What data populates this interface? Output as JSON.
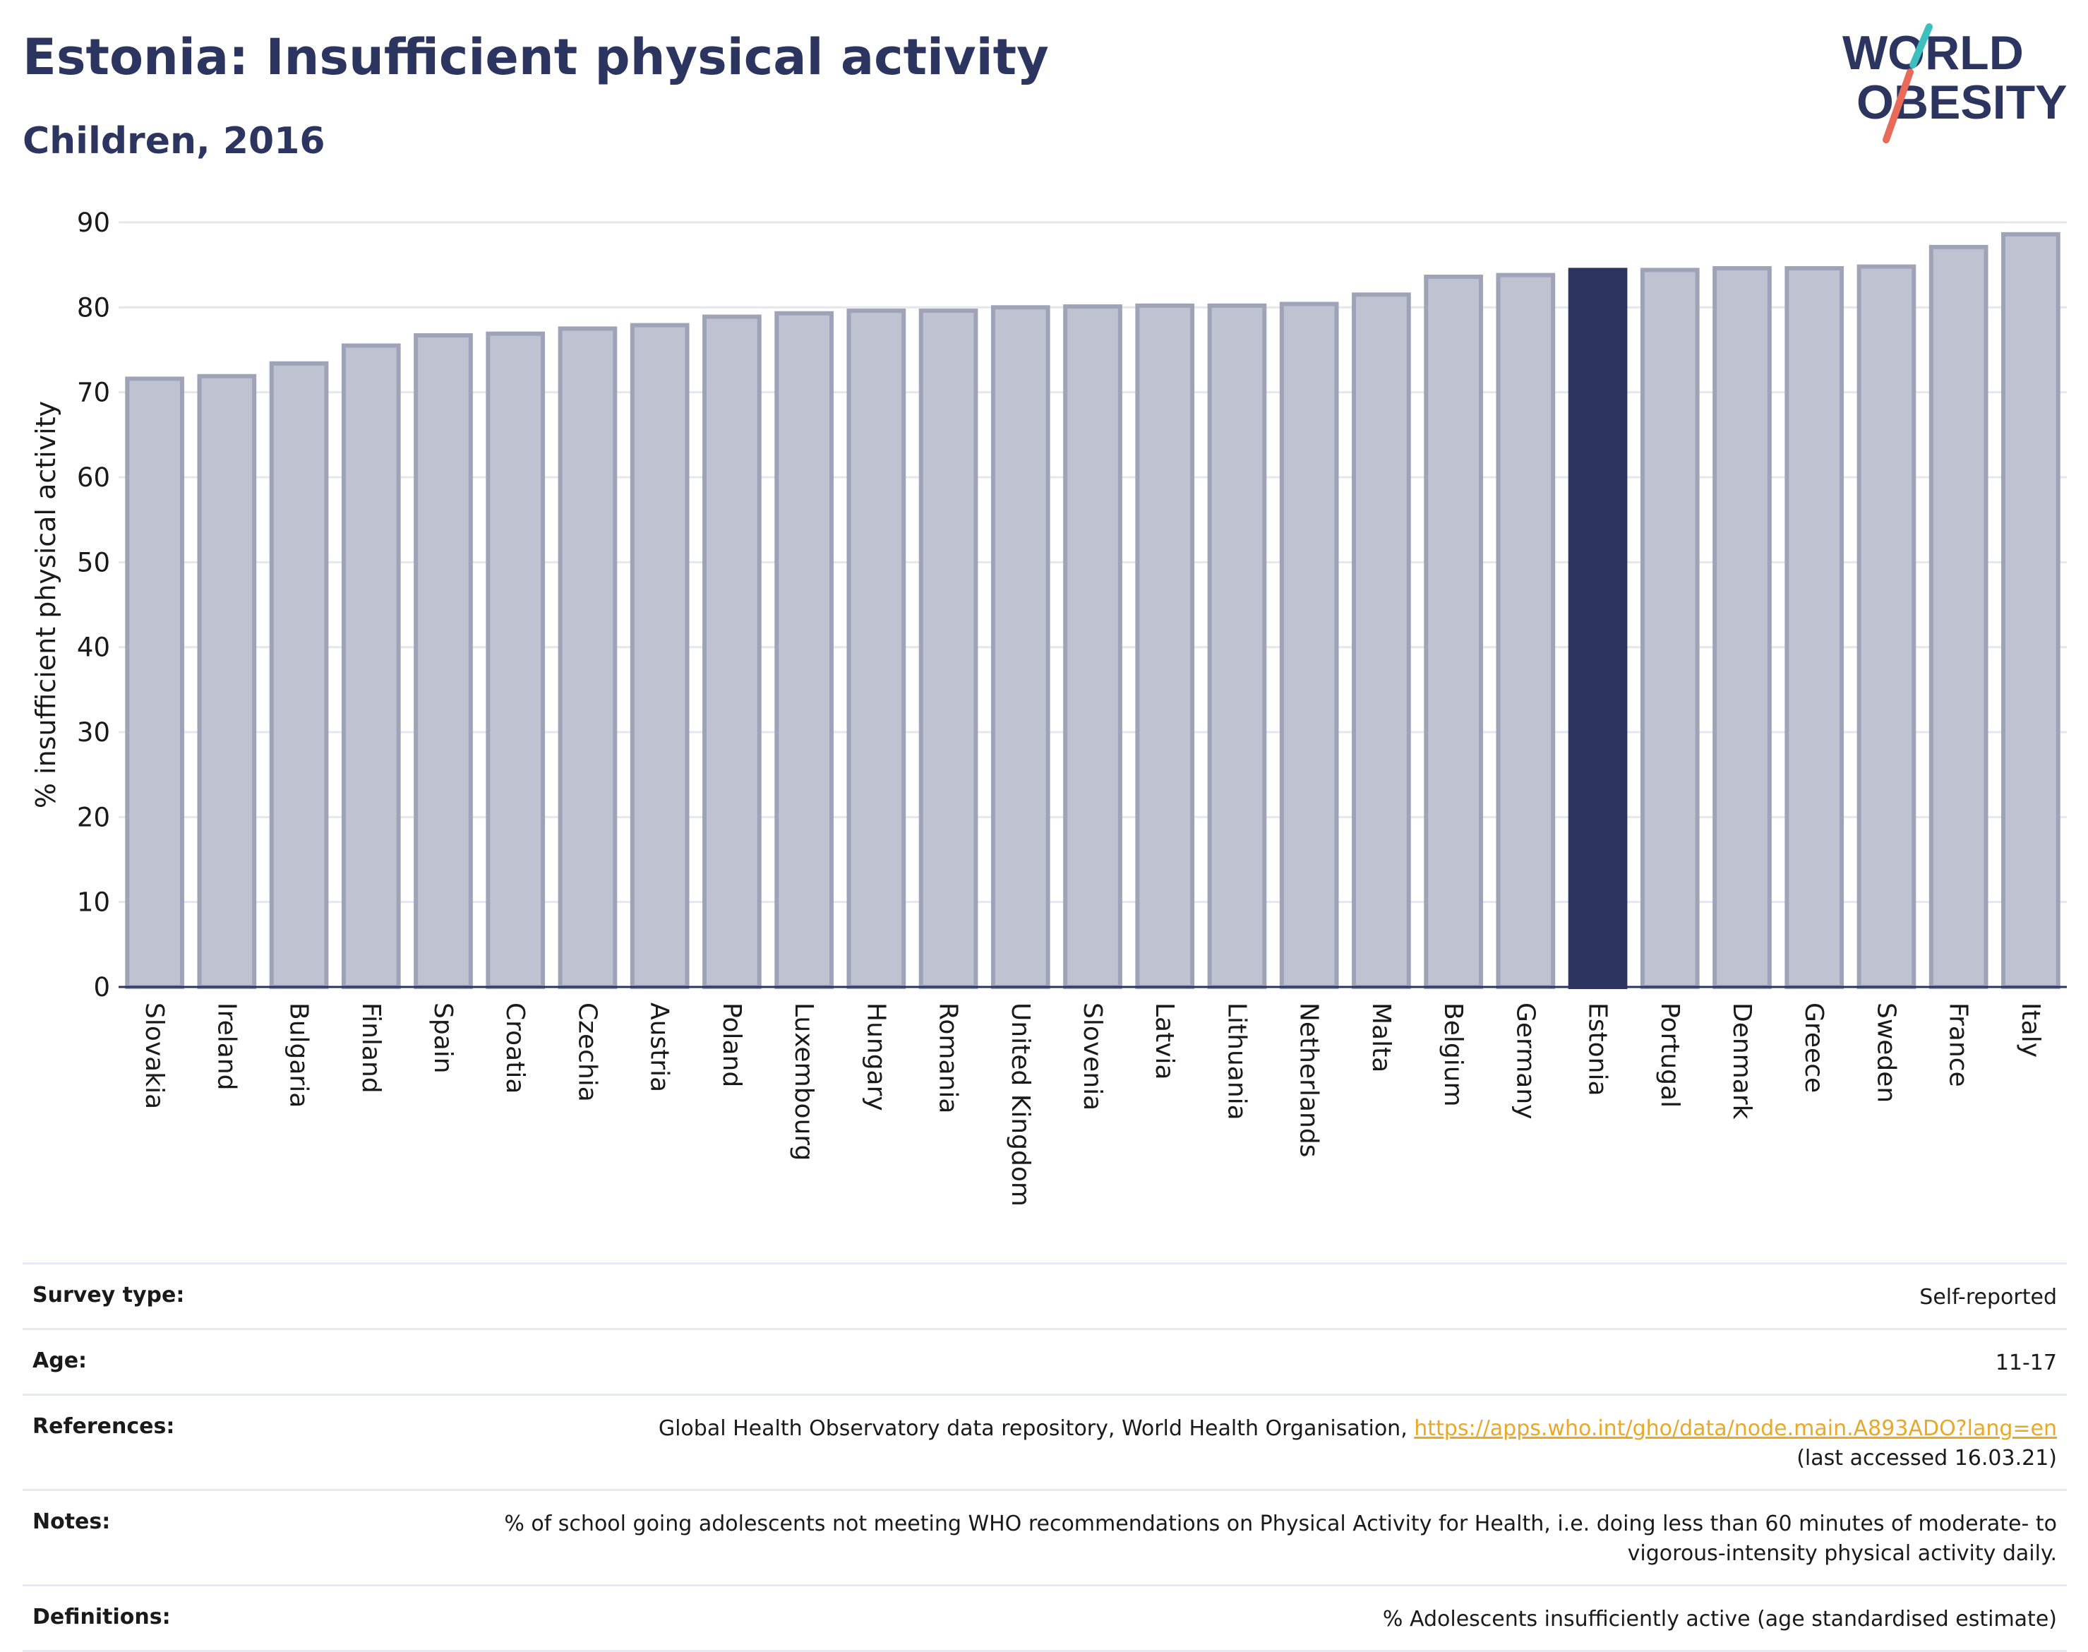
{
  "header": {
    "title": "Estonia: Insufficient physical activity",
    "subtitle": "Children, 2016"
  },
  "logo": {
    "line1": "WORLD",
    "line2": "OBESITY",
    "colors": {
      "text": "#2b3560",
      "teal": "#3bbfbf",
      "coral": "#e86b5a"
    }
  },
  "chart_data": {
    "type": "bar",
    "ylabel": "% insufficient physical activity",
    "xlabel": "",
    "ylim": [
      0,
      90
    ],
    "yticks": [
      0,
      10,
      20,
      30,
      40,
      50,
      60,
      70,
      80,
      90
    ],
    "grid": true,
    "highlight": "Estonia",
    "colors": {
      "bar": "#bfc2d0",
      "bar_edge": "#9ea3b8",
      "highlight": "#2b3560",
      "axis": "#2b3560",
      "grid": "#e6e7ee"
    },
    "categories": [
      "Slovakia",
      "Ireland",
      "Bulgaria",
      "Finland",
      "Spain",
      "Croatia",
      "Czechia",
      "Austria",
      "Poland",
      "Luxembourg",
      "Hungary",
      "Romania",
      "United Kingdom",
      "Slovenia",
      "Latvia",
      "Lithuania",
      "Netherlands",
      "Malta",
      "Belgium",
      "Germany",
      "Estonia",
      "Portugal",
      "Denmark",
      "Greece",
      "Sweden",
      "France",
      "Italy"
    ],
    "values": [
      71.6,
      71.9,
      73.4,
      75.5,
      76.7,
      76.9,
      77.5,
      77.9,
      78.9,
      79.3,
      79.6,
      79.6,
      80.0,
      80.1,
      80.2,
      80.2,
      80.4,
      81.5,
      83.6,
      83.8,
      84.4,
      84.4,
      84.6,
      84.6,
      84.8,
      87.1,
      88.6
    ]
  },
  "meta": [
    {
      "label": "Survey type:",
      "value": "Self-reported"
    },
    {
      "label": "Age:",
      "value": "11-17"
    },
    {
      "label": "References:",
      "value": "Global Health Observatory data repository, World Health Organisation, ",
      "link": "https://apps.who.int/gho/data/node.main.A893ADO?lang=en",
      "value_suffix": "(last accessed 16.03.21)"
    },
    {
      "label": "Notes:",
      "value": "% of school going adolescents not meeting WHO recommendations on Physical Activity for Health, i.e. doing less than 60 minutes of moderate- to vigorous-intensity physical activity daily."
    },
    {
      "label": "Definitions:",
      "value": "% Adolescents insufficiently active (age standardised estimate)"
    }
  ]
}
